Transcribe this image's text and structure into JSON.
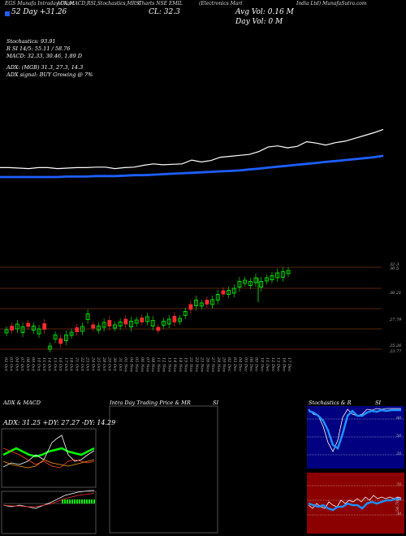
{
  "header": {
    "col1": "EGS Munafa Intraday Chart",
    "col2": "ADX,MACD,RSI,Stochastics,MRSI",
    "col3": "Charts NSE EMIL",
    "col4": "(Electronics Mart",
    "col5": "India Ltd) MunafaSutra.com"
  },
  "week52": "52 Day +31.26",
  "close": "CL: 32.3",
  "avg_vol": "Avg Vol: 0.16  M",
  "day_vol": "Day Vol: 0  M",
  "indicators": {
    "stochastics": "Stochastics: 93.91",
    "rsi": "R   SI 14/5: 55.11 / 58.76",
    "macd": "MACD: 32.33, 30.46, 1.89 D",
    "adx": "ADX:                     (MGB) 31.3,  27.3,  14.3",
    "adx_signal": "ADX  signal:                          BUY Growing @ 7%"
  },
  "price_axis": [
    "32.3",
    "30.5",
    "30.21",
    "27.79",
    "25.26",
    "23.77"
  ],
  "dates": [
    "02 Oct",
    "03 Oct",
    "04 Oct",
    "07 Oct",
    "08 Oct",
    "09 Oct",
    "10 Oct",
    "11 Oct",
    "14 Oct",
    "15 Oct",
    "16 Oct",
    "17 Oct",
    "18 Oct",
    "21 Oct",
    "22 Oct",
    "23 Oct",
    "24 Oct",
    "25 Oct",
    "28 Oct",
    "29 Oct",
    "30 Oct",
    "31 Oct",
    "01 Nov",
    "04 Nov",
    "05 Nov",
    "06 Nov",
    "07 Nov",
    "08 Nov",
    "11 Nov",
    "12 Nov",
    "13 Nov",
    "14 Nov",
    "18 Nov",
    "19 Nov",
    "21 Nov",
    "22 Nov",
    "25 Nov",
    "26 Nov",
    "27 Nov",
    "28 Nov",
    "29 Nov",
    "02 Dec",
    "03 Dec",
    "04 Dec",
    "05 Dec",
    "06 Dec",
    "09 Dec",
    "10 Dec",
    "11 Dec",
    "12 Dec",
    "13 Dec",
    "16 Dec",
    "17 Dec"
  ],
  "panels": {
    "adx_macd_title": "ADX  & MACD",
    "adx_values": "ADX: 31.25  +DY: 27.27  -DY: 14.29",
    "intraday_title": "Intra  Day Trading Price  & MR",
    "intraday_title2": "SI",
    "stoch_title": "Stochastics & R",
    "stoch_title2": "SI",
    "stoch_axis": [
      "80",
      "50",
      "20"
    ],
    "rsi_axis": [
      "70",
      "50",
      "30"
    ],
    "rsi_value": "58.76"
  },
  "colors": {
    "price_line": "#ffffff",
    "ma_line": "#1e5fff",
    "up_candle": "#00ff00",
    "down_candle": "#ff2b2b",
    "stoch_bg": "#000080",
    "rsi_bg": "#8b0000",
    "grid": "#b04a1a"
  },
  "chart_data": {
    "type": "line",
    "series": [
      {
        "values": [
          5,
          5,
          4.9,
          4.8,
          5,
          5,
          4.8,
          4.9,
          5,
          5,
          5.1,
          5.1,
          4.8,
          5,
          5.1,
          5.5,
          5.8,
          5.6,
          5.7,
          5.8,
          6.6,
          6.2,
          6.5,
          7.2,
          7.4,
          7.6,
          7.8,
          8.4,
          9.4,
          9.6,
          9.2,
          9.5,
          10.5,
          10.2,
          9.8,
          10.3,
          10.6,
          11.2,
          11.8,
          12.4,
          13.1
        ]
      },
      {
        "values": [
          3,
          3,
          3,
          3,
          3,
          3,
          3,
          3.1,
          3.1,
          3.1,
          3.2,
          3.2,
          3.2,
          3.3,
          3.4,
          3.4,
          3.5,
          3.6,
          3.7,
          3.8,
          3.9,
          4,
          4.1,
          4.2,
          4.3,
          4.4,
          4.6,
          4.8,
          5,
          5.2,
          5.4,
          5.6,
          5.8,
          6,
          6.2,
          6.4,
          6.6,
          6.8,
          7,
          7.2,
          7.5
        ]
      }
    ]
  }
}
